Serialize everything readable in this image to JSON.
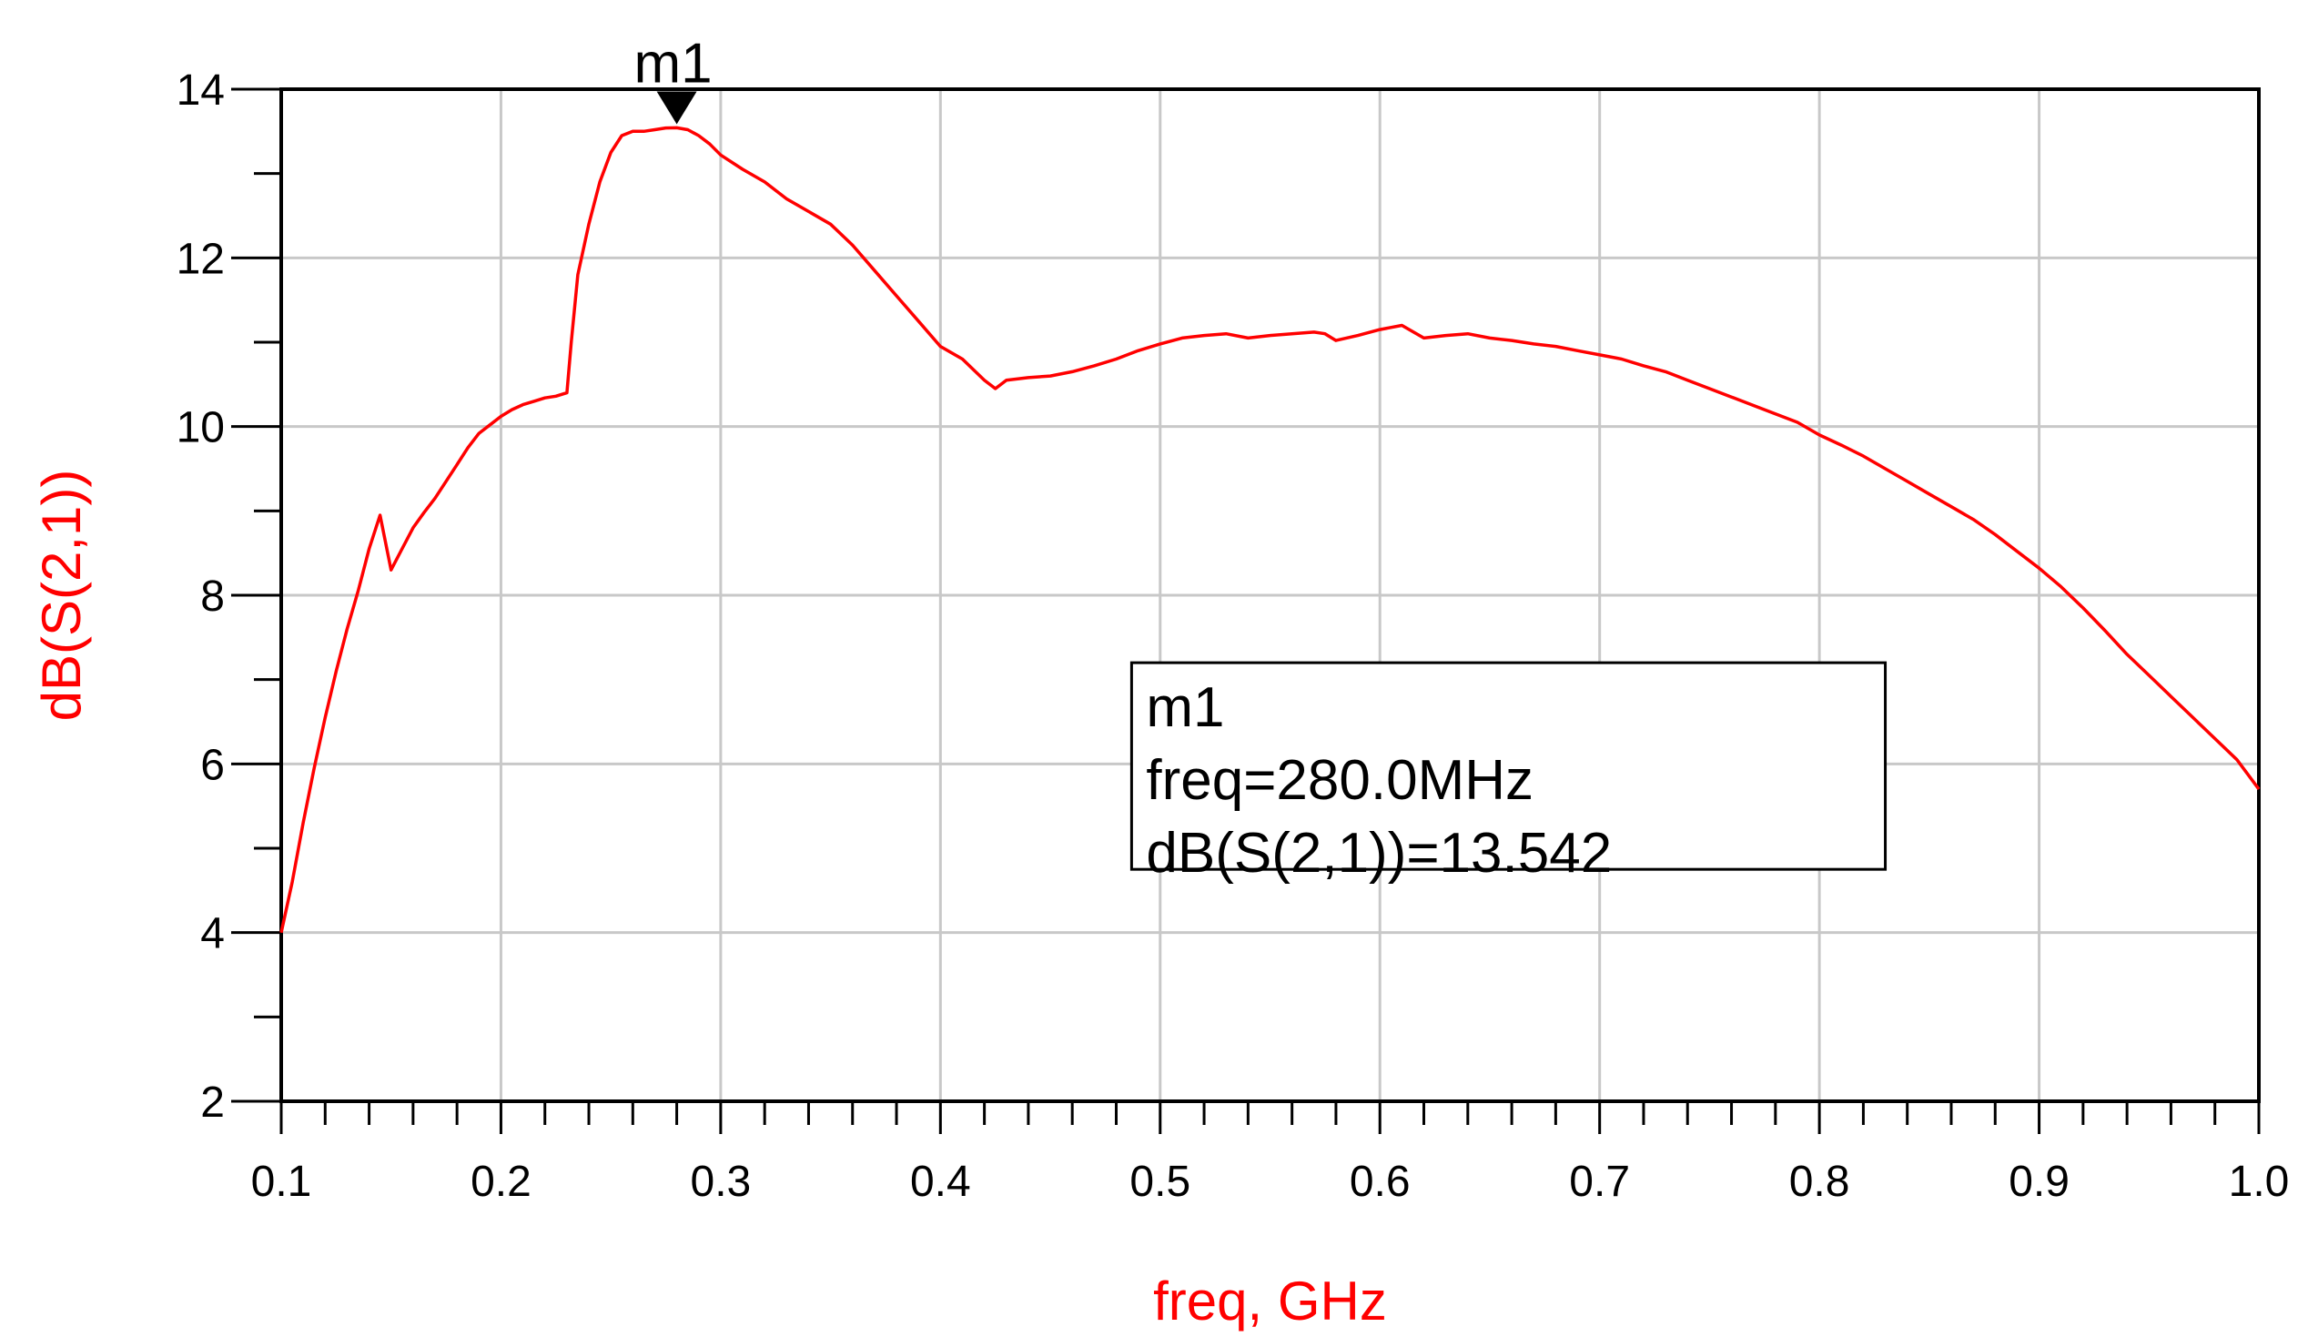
{
  "chart_data": {
    "type": "line",
    "title": "",
    "xlabel": "freq, GHz",
    "ylabel": "dB(S(2,1))",
    "xlim": [
      0.1,
      1.0
    ],
    "ylim": [
      2,
      14
    ],
    "x_ticks": [
      0.1,
      0.2,
      0.3,
      0.4,
      0.5,
      0.6,
      0.7,
      0.8,
      0.9,
      1.0
    ],
    "x_tick_labels": [
      "0.1",
      "0.2",
      "0.3",
      "0.4",
      "0.5",
      "0.6",
      "0.7",
      "0.8",
      "0.9",
      "1.0"
    ],
    "y_ticks": [
      2,
      4,
      6,
      8,
      10,
      12,
      14
    ],
    "y_tick_labels": [
      "2",
      "4",
      "6",
      "8",
      "10",
      "12",
      "14"
    ],
    "grid": true,
    "series_color": "#ff0000",
    "series": [
      {
        "x": [
          0.1,
          0.105,
          0.11,
          0.115,
          0.12,
          0.125,
          0.13,
          0.135,
          0.14,
          0.145,
          0.15,
          0.155,
          0.16,
          0.165,
          0.17,
          0.175,
          0.18,
          0.185,
          0.19,
          0.195,
          0.2,
          0.205,
          0.21,
          0.215,
          0.22,
          0.225,
          0.23,
          0.232,
          0.235,
          0.24,
          0.245,
          0.25,
          0.255,
          0.26,
          0.265,
          0.27,
          0.275,
          0.28,
          0.285,
          0.29,
          0.295,
          0.3,
          0.31,
          0.32,
          0.33,
          0.34,
          0.35,
          0.36,
          0.37,
          0.38,
          0.39,
          0.4,
          0.41,
          0.42,
          0.425,
          0.43,
          0.44,
          0.45,
          0.46,
          0.47,
          0.48,
          0.49,
          0.5,
          0.51,
          0.52,
          0.53,
          0.54,
          0.55,
          0.56,
          0.57,
          0.575,
          0.58,
          0.59,
          0.6,
          0.61,
          0.62,
          0.63,
          0.64,
          0.65,
          0.66,
          0.67,
          0.68,
          0.69,
          0.7,
          0.71,
          0.72,
          0.73,
          0.74,
          0.75,
          0.76,
          0.77,
          0.78,
          0.79,
          0.8,
          0.81,
          0.82,
          0.83,
          0.84,
          0.85,
          0.86,
          0.87,
          0.88,
          0.89,
          0.9,
          0.91,
          0.92,
          0.93,
          0.94,
          0.95,
          0.96,
          0.97,
          0.98,
          0.99,
          1.0
        ],
        "y": [
          4.0,
          4.6,
          5.3,
          5.95,
          6.55,
          7.1,
          7.6,
          8.05,
          8.55,
          8.95,
          8.3,
          8.55,
          8.8,
          8.98,
          9.15,
          9.35,
          9.55,
          9.75,
          9.92,
          10.02,
          10.12,
          10.2,
          10.26,
          10.3,
          10.34,
          10.36,
          10.4,
          11.0,
          11.8,
          12.4,
          12.9,
          13.25,
          13.45,
          13.5,
          13.5,
          13.52,
          13.54,
          13.542,
          13.52,
          13.45,
          13.35,
          13.22,
          13.05,
          12.9,
          12.7,
          12.55,
          12.4,
          12.15,
          11.85,
          11.55,
          11.25,
          10.95,
          10.8,
          10.55,
          10.45,
          10.55,
          10.58,
          10.6,
          10.65,
          10.72,
          10.8,
          10.9,
          10.98,
          11.05,
          11.08,
          11.1,
          11.05,
          11.08,
          11.1,
          11.12,
          11.1,
          11.02,
          11.08,
          11.15,
          11.2,
          11.05,
          11.08,
          11.1,
          11.05,
          11.02,
          10.98,
          10.95,
          10.9,
          10.85,
          10.8,
          10.72,
          10.65,
          10.55,
          10.45,
          10.35,
          10.25,
          10.15,
          10.05,
          9.9,
          9.78,
          9.65,
          9.5,
          9.35,
          9.2,
          9.05,
          8.9,
          8.72,
          8.52,
          8.32,
          8.1,
          7.85,
          7.58,
          7.3,
          7.05,
          6.8,
          6.55,
          6.3,
          6.05,
          5.7
        ]
      }
    ],
    "marker": {
      "label": "m1",
      "x": 0.28,
      "y": 13.542,
      "box_lines": [
        "m1",
        "freq=280.0MHz",
        "dB(S(2,1))=13.542"
      ]
    }
  }
}
